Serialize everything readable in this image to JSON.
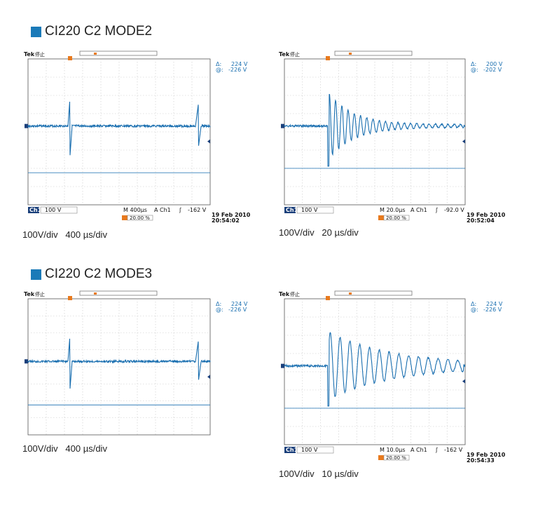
{
  "colors": {
    "accent": "#1a7ab8",
    "trace": "#1a6fb0",
    "marker": "#e87a1e",
    "grid": "#c8c8c8"
  },
  "sections": [
    {
      "title": "CI220 C2 MODE2"
    },
    {
      "title": "CI220 C2 MODE3"
    }
  ],
  "scopes": [
    {
      "tek": "Tek",
      "status": "停止",
      "delta_sym": "Δ:",
      "delta_val": "224 V",
      "at_sym": "@:",
      "at_val": "-226 V",
      "ch_box": "Ch1",
      "ch_scale": "100 V",
      "timebase": "M 400µs",
      "trig_src": "A  Ch1",
      "trig_slope": "ʃ",
      "trig_level": "-162 V",
      "pos": "20.00 %",
      "date": "19 Feb  2010",
      "time": "20:54:02",
      "caption": "100V/div   400 µs/div",
      "trace_kind": "spikes",
      "settle_cycles": 0
    },
    {
      "tek": "Tek",
      "status": "停止",
      "delta_sym": "Δ:",
      "delta_val": "200 V",
      "at_sym": "@:",
      "at_val": "-202 V",
      "ch_box": "Ch1",
      "ch_scale": "100 V",
      "timebase": "M 20.0µs",
      "trig_src": "A  Ch1",
      "trig_slope": "ʃ",
      "trig_level": "-92.0 V",
      "pos": "20.00 %",
      "date": "19 Feb  2010",
      "time": "20:52:04",
      "caption": "100V/div   20 µs/div",
      "trace_kind": "ring",
      "settle_cycles": 22
    },
    {
      "tek": "Tek",
      "status": "停止",
      "delta_sym": "Δ:",
      "delta_val": "224 V",
      "at_sym": "@:",
      "at_val": "-226 V",
      "ch_box": "",
      "ch_scale": "",
      "timebase": "",
      "trig_src": "",
      "trig_slope": "",
      "trig_level": "",
      "pos": "",
      "date": "",
      "time": "",
      "caption": "100V/div   400 µs/div",
      "trace_kind": "spikes",
      "settle_cycles": 0
    },
    {
      "tek": "Tek",
      "status": "停止",
      "delta_sym": "Δ:",
      "delta_val": "224 V",
      "at_sym": "@:",
      "at_val": "-226 V",
      "ch_box": "Ch1",
      "ch_scale": "100 V",
      "timebase": "M 10.0µs",
      "trig_src": "A  Ch1",
      "trig_slope": "ʃ",
      "trig_level": "-162 V",
      "pos": "20.00 %",
      "date": "19 Feb  2010",
      "time": "20:54:33",
      "caption": "100V/div   10 µs/div",
      "trace_kind": "ring",
      "settle_cycles": 14
    }
  ],
  "chart_data": [
    {
      "type": "line",
      "title": "",
      "xlabel": "400 µs/div",
      "ylabel": "100V/div",
      "series": [
        {
          "values": [
            0,
            0,
            180,
            -190,
            0,
            0,
            0,
            0,
            150,
            -160,
            0
          ]
        }
      ]
    },
    {
      "type": "line",
      "title": "",
      "xlabel": "20 µs/div",
      "ylabel": "100V/div",
      "series": [
        {
          "values": [
            0,
            0,
            200,
            -202,
            120,
            -90,
            60,
            -40,
            20,
            -10,
            0
          ]
        }
      ]
    },
    {
      "type": "line",
      "title": "",
      "xlabel": "400 µs/div",
      "ylabel": "100V/div",
      "series": [
        {
          "values": [
            0,
            0,
            180,
            -190,
            0,
            0,
            0,
            0,
            150,
            -160,
            0
          ]
        }
      ]
    },
    {
      "type": "line",
      "title": "",
      "xlabel": "10 µs/div",
      "ylabel": "100V/div",
      "series": [
        {
          "values": [
            0,
            0,
            150,
            -226,
            130,
            -120,
            100,
            -90,
            70,
            -60,
            40
          ]
        }
      ]
    }
  ]
}
